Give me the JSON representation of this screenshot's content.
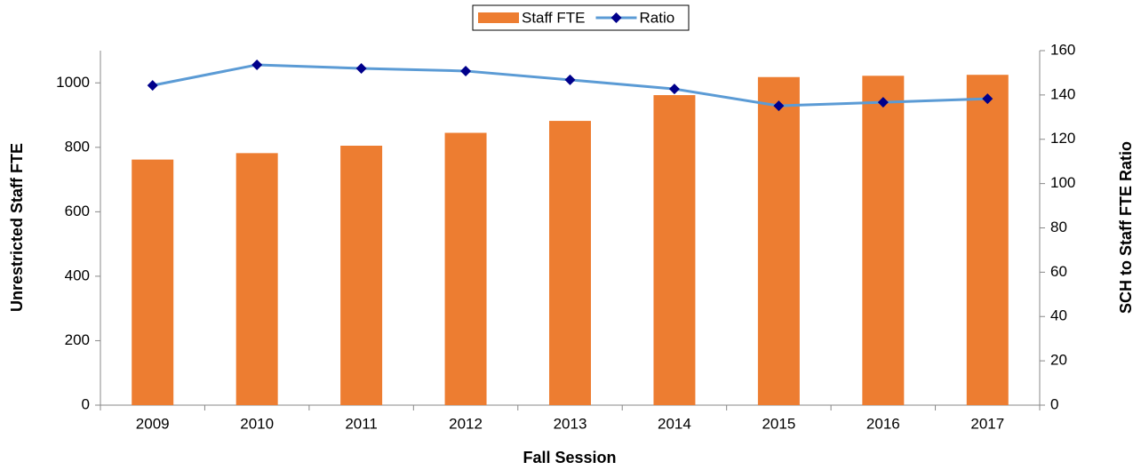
{
  "chart_data": {
    "type": "bar_line",
    "xlabel": "Fall Session",
    "ylabel": "Unrestricted Staff FTE",
    "y2label": "SCH to Staff FTE Ratio",
    "categories": [
      "2009",
      "2010",
      "2011",
      "2012",
      "2013",
      "2014",
      "2015",
      "2016",
      "2017"
    ],
    "series": [
      {
        "name": "Staff FTE",
        "type": "bar",
        "color": "#ed7d31",
        "values": [
          762,
          782,
          805,
          845,
          882,
          962,
          1018,
          1022,
          1025
        ]
      },
      {
        "name": "Ratio",
        "type": "line",
        "axis": "y2",
        "color": "#5b9bd5",
        "marker_color": "#00008b",
        "values": [
          144.3,
          153.6,
          152.0,
          150.8,
          146.8,
          142.7,
          135.1,
          136.7,
          138.3
        ]
      }
    ],
    "ylim": [
      0,
      1100
    ],
    "yticks": [
      0,
      200,
      400,
      600,
      800,
      1000
    ],
    "y2lim": [
      0,
      160
    ],
    "y2ticks": [
      0,
      20,
      40,
      60,
      80,
      100,
      120,
      140,
      160
    ],
    "legend": "top"
  }
}
